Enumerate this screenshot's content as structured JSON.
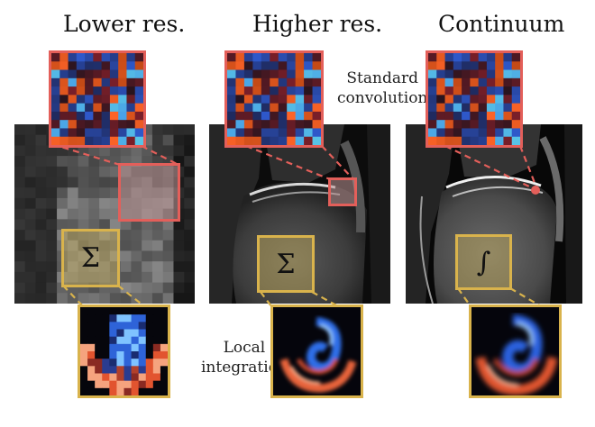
{
  "titles": [
    "Lower res.",
    "Higher res.",
    "Continuum"
  ],
  "annotations": {
    "standard_convolution": [
      "Standard",
      "convolution"
    ],
    "local_integration": [
      "Local",
      "integration"
    ]
  },
  "operators": {
    "sum_symbol": "Σ",
    "integral_symbol": "∫"
  },
  "colors": {
    "red_frame": "#e35f5a",
    "gold_frame": "#d9b34c"
  }
}
